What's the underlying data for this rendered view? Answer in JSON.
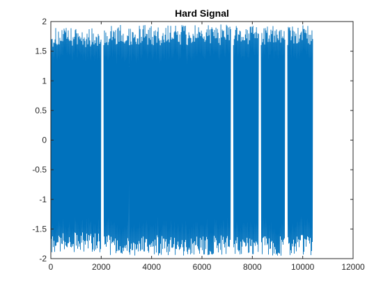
{
  "chart_data": {
    "type": "line",
    "title": "Hard Signal",
    "xlabel": "",
    "ylabel": "",
    "xlim": [
      0,
      12000
    ],
    "ylim": [
      -2,
      2
    ],
    "xticks": [
      0,
      2000,
      4000,
      6000,
      8000,
      10000,
      12000
    ],
    "xtick_labels": [
      "0",
      "2000",
      "4000",
      "6000",
      "8000",
      "10000",
      "12000"
    ],
    "yticks": [
      -2,
      -1.5,
      -1,
      -0.5,
      0,
      0.5,
      1,
      1.5,
      2
    ],
    "ytick_labels": [
      "-2",
      "-1.5",
      "-1",
      "-0.5",
      "0",
      "0.5",
      "1",
      "1.5",
      "2"
    ],
    "grid": false,
    "series": [
      {
        "name": "Hard Signal",
        "color": "#0072BD",
        "x_range": [
          0,
          10400
        ],
        "amplitude_approx": 1.95,
        "gaps_x": [
          2050,
          7200,
          8300,
          9350
        ],
        "segments": [
          {
            "x_start": 0,
            "x_end": 2000,
            "peak_abs": 1.9
          },
          {
            "x_start": 2100,
            "x_end": 3100,
            "peak_abs": 1.95
          },
          {
            "x_start": 3100,
            "x_end": 7150,
            "peak_abs": 1.95
          },
          {
            "x_start": 7250,
            "x_end": 8250,
            "peak_abs": 1.95
          },
          {
            "x_start": 8350,
            "x_end": 9300,
            "peak_abs": 1.95
          },
          {
            "x_start": 9400,
            "x_end": 10400,
            "peak_abs": 1.95
          }
        ]
      }
    ]
  }
}
